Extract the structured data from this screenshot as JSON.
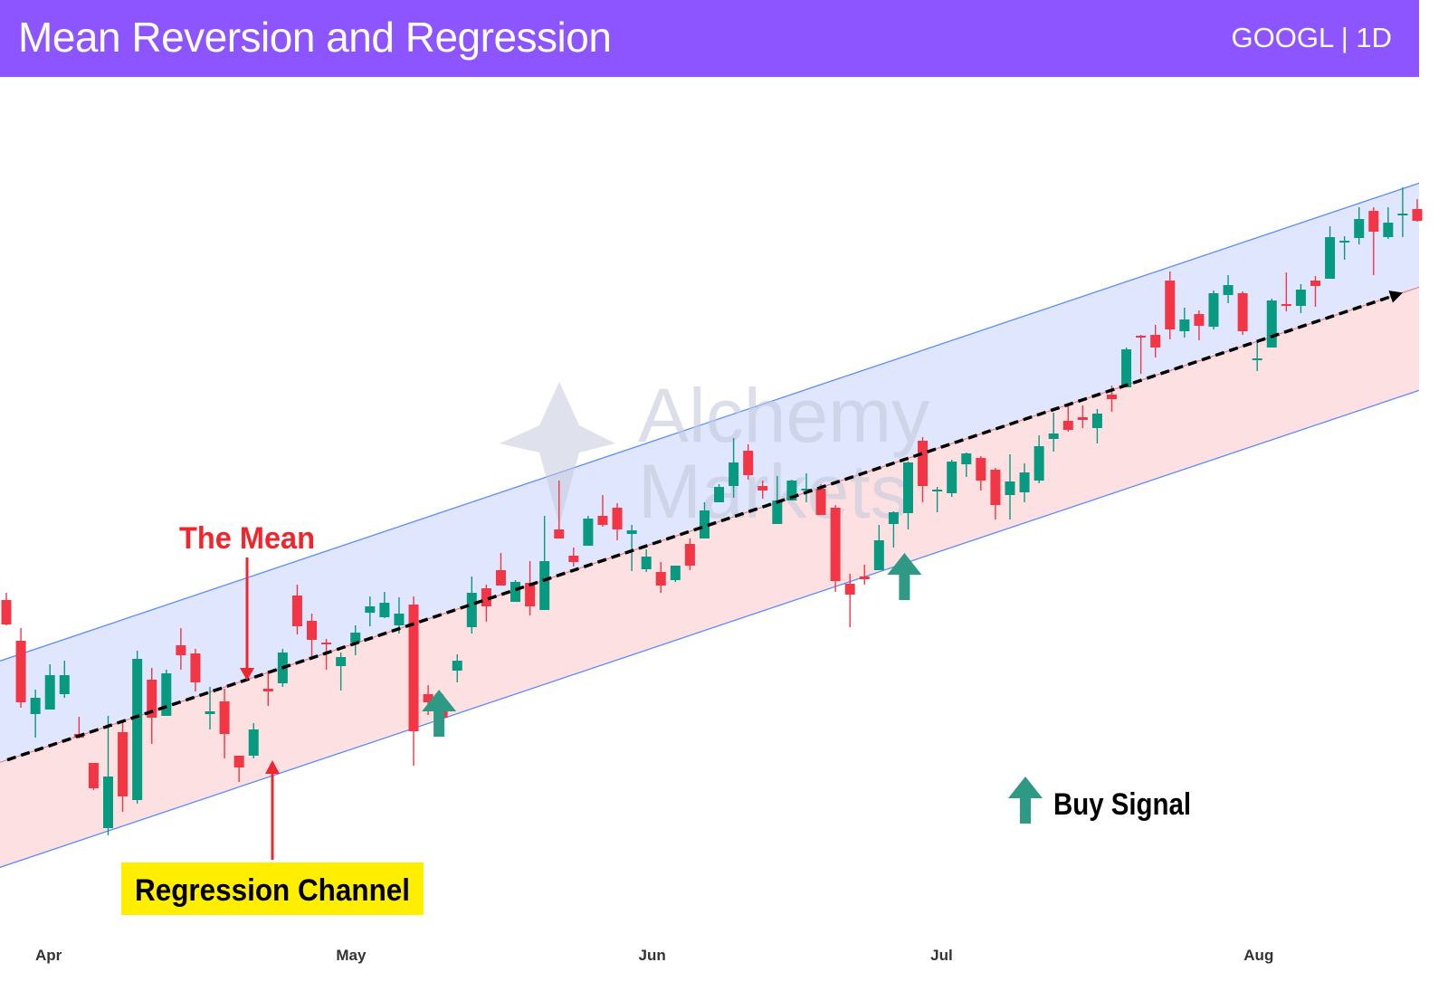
{
  "header": {
    "title": "Mean Reversion and Regression",
    "ticker": "GOOGL | 1D"
  },
  "watermark": {
    "line1": "Alchemy",
    "line2": "Markets"
  },
  "annotations": {
    "mean_label": "The Mean",
    "channel_label": "Regression Channel",
    "buy_label": "Buy Signal",
    "buy_signal_candles": [
      29,
      61
    ],
    "colors": {
      "mean_label": "#f0262d",
      "channel_box": "#ffee00",
      "buy_arrow": "#2e9a85"
    }
  },
  "chart_data": {
    "type": "candlestick",
    "title": "",
    "colors": {
      "up": "#089981",
      "down": "#f23645",
      "upper_band_fill": "#dfe6fd",
      "lower_band_fill": "#fde0e2",
      "channel_line": "#5b8cff",
      "mean_line": "#000000"
    },
    "xticks": [
      {
        "label": "Apr",
        "index": 2.9
      },
      {
        "label": "May",
        "index": 23.7
      },
      {
        "label": "Jun",
        "index": 44.4
      },
      {
        "label": "Jul",
        "index": 64.3
      },
      {
        "label": "Aug",
        "index": 86.1
      }
    ],
    "regression_channel": {
      "upper": [
        108.6,
        134.85
      ],
      "mean": [
        103.0,
        129.1
      ],
      "lower": [
        97.2,
        123.4
      ]
    },
    "ohlc": [
      [
        111.85,
        112.25,
        110.45,
        110.5
      ],
      [
        109.6,
        110.3,
        105.9,
        106.2
      ],
      [
        105.55,
        106.9,
        104.25,
        106.45
      ],
      [
        105.8,
        108.3,
        105.8,
        107.7
      ],
      [
        106.65,
        108.5,
        106.45,
        107.7
      ],
      [
        104.45,
        105.4,
        104.2,
        104.25
      ],
      [
        102.85,
        102.85,
        101.35,
        101.45
      ],
      [
        99.25,
        105.45,
        98.85,
        102.1
      ],
      [
        104.55,
        105.1,
        100.15,
        101.0
      ],
      [
        100.8,
        109.05,
        100.6,
        108.6
      ],
      [
        107.45,
        108.1,
        103.9,
        105.35
      ],
      [
        105.45,
        108.0,
        105.45,
        107.8
      ],
      [
        109.35,
        110.3,
        108.0,
        108.8
      ],
      [
        108.9,
        109.15,
        106.8,
        107.3
      ],
      [
        105.55,
        107.05,
        104.7,
        105.7
      ],
      [
        106.25,
        106.95,
        103.1,
        104.45
      ],
      [
        103.25,
        103.25,
        101.8,
        102.6
      ],
      [
        103.25,
        105.05,
        103.1,
        104.7
      ],
      [
        106.95,
        107.95,
        106.0,
        106.8
      ],
      [
        107.25,
        109.15,
        107.05,
        108.95
      ],
      [
        112.1,
        112.7,
        109.95,
        110.4
      ],
      [
        110.7,
        111.1,
        108.75,
        109.65
      ],
      [
        109.5,
        109.7,
        108.0,
        109.4
      ],
      [
        108.2,
        108.95,
        106.85,
        108.7
      ],
      [
        109.5,
        110.45,
        108.8,
        110.05
      ],
      [
        111.15,
        112.05,
        110.4,
        111.5
      ],
      [
        110.9,
        112.3,
        110.85,
        111.7
      ],
      [
        110.45,
        112.0,
        110.0,
        111.1
      ],
      [
        111.6,
        112.05,
        102.7,
        104.6
      ],
      [
        106.65,
        107.15,
        105.5,
        106.2
      ],
      [
        106.2,
        106.65,
        105.1,
        105.35
      ],
      [
        107.95,
        108.85,
        107.3,
        108.5
      ],
      [
        110.35,
        113.15,
        110.0,
        112.25
      ],
      [
        112.5,
        112.7,
        110.65,
        111.5
      ],
      [
        113.5,
        114.45,
        112.65,
        112.65
      ],
      [
        111.75,
        112.95,
        111.75,
        112.85
      ],
      [
        112.8,
        114.0,
        111.0,
        111.5
      ],
      [
        111.3,
        116.5,
        111.3,
        114.0
      ],
      [
        115.75,
        118.45,
        115.25,
        115.25
      ],
      [
        114.3,
        114.75,
        113.7,
        113.95
      ],
      [
        114.85,
        116.5,
        114.85,
        116.35
      ],
      [
        116.5,
        117.65,
        115.9,
        116.0
      ],
      [
        116.95,
        117.2,
        115.15,
        115.75
      ],
      [
        115.5,
        116.0,
        113.45,
        115.7
      ],
      [
        113.55,
        114.65,
        113.4,
        114.25
      ],
      [
        113.4,
        113.95,
        112.25,
        112.65
      ],
      [
        112.95,
        113.75,
        112.85,
        113.75
      ],
      [
        114.95,
        115.25,
        113.5,
        113.75
      ],
      [
        115.25,
        117.25,
        115.25,
        116.8
      ],
      [
        117.25,
        118.25,
        117.25,
        118.1
      ],
      [
        118.15,
        120.8,
        117.5,
        119.45
      ],
      [
        120.1,
        120.45,
        118.5,
        118.75
      ],
      [
        118.15,
        118.45,
        117.45,
        117.9
      ],
      [
        116.05,
        118.7,
        116.05,
        117.35
      ],
      [
        117.35,
        118.5,
        117.35,
        118.45
      ],
      [
        117.9,
        118.85,
        117.25,
        118.0
      ],
      [
        118.0,
        118.25,
        116.55,
        116.55
      ],
      [
        116.95,
        117.1,
        112.3,
        112.9
      ],
      [
        112.75,
        113.3,
        110.35,
        112.15
      ],
      [
        113.15,
        113.8,
        112.7,
        113.0
      ],
      [
        113.5,
        116.0,
        113.5,
        115.15
      ],
      [
        116.05,
        116.75,
        114.75,
        116.7
      ],
      [
        116.65,
        119.5,
        115.75,
        119.45
      ],
      [
        120.65,
        120.85,
        117.25,
        118.15
      ],
      [
        117.9,
        118.1,
        116.7,
        117.95
      ],
      [
        117.75,
        119.6,
        117.55,
        119.5
      ],
      [
        119.35,
        120.0,
        118.65,
        119.95
      ],
      [
        119.7,
        119.8,
        117.9,
        118.45
      ],
      [
        119.05,
        119.15,
        116.3,
        117.1
      ],
      [
        117.65,
        119.9,
        116.3,
        118.4
      ],
      [
        117.8,
        119.4,
        117.25,
        118.9
      ],
      [
        118.45,
        120.95,
        118.3,
        120.35
      ],
      [
        120.75,
        122.2,
        120.05,
        121.05
      ],
      [
        121.75,
        122.55,
        121.15,
        121.25
      ],
      [
        121.95,
        122.6,
        121.35,
        121.8
      ],
      [
        121.35,
        122.4,
        120.5,
        122.15
      ],
      [
        123.2,
        123.7,
        122.25,
        122.95
      ],
      [
        123.6,
        125.8,
        123.6,
        125.7
      ],
      [
        126.45,
        126.5,
        124.35,
        126.35
      ],
      [
        126.5,
        127.05,
        125.25,
        125.8
      ],
      [
        129.5,
        130.0,
        126.25,
        126.8
      ],
      [
        126.7,
        128.0,
        126.35,
        127.35
      ],
      [
        127.65,
        127.85,
        126.2,
        127.0
      ],
      [
        126.95,
        128.95,
        126.8,
        128.8
      ],
      [
        128.7,
        129.8,
        128.25,
        129.25
      ],
      [
        128.8,
        128.9,
        126.5,
        126.7
      ],
      [
        125.15,
        126.15,
        124.5,
        125.2
      ],
      [
        125.8,
        128.5,
        125.8,
        128.4
      ],
      [
        128.2,
        129.95,
        127.8,
        128.15
      ],
      [
        128.1,
        129.3,
        127.7,
        129.0
      ],
      [
        129.5,
        129.75,
        128.05,
        129.2
      ],
      [
        129.6,
        132.5,
        129.6,
        131.9
      ],
      [
        131.65,
        131.95,
        130.65,
        131.7
      ],
      [
        131.85,
        133.55,
        131.5,
        132.9
      ],
      [
        133.35,
        133.55,
        129.8,
        132.2
      ],
      [
        131.9,
        133.55,
        131.8,
        132.7
      ],
      [
        133.15,
        134.65,
        131.9,
        133.2
      ],
      [
        133.45,
        134.0,
        132.75,
        132.8
      ]
    ]
  }
}
